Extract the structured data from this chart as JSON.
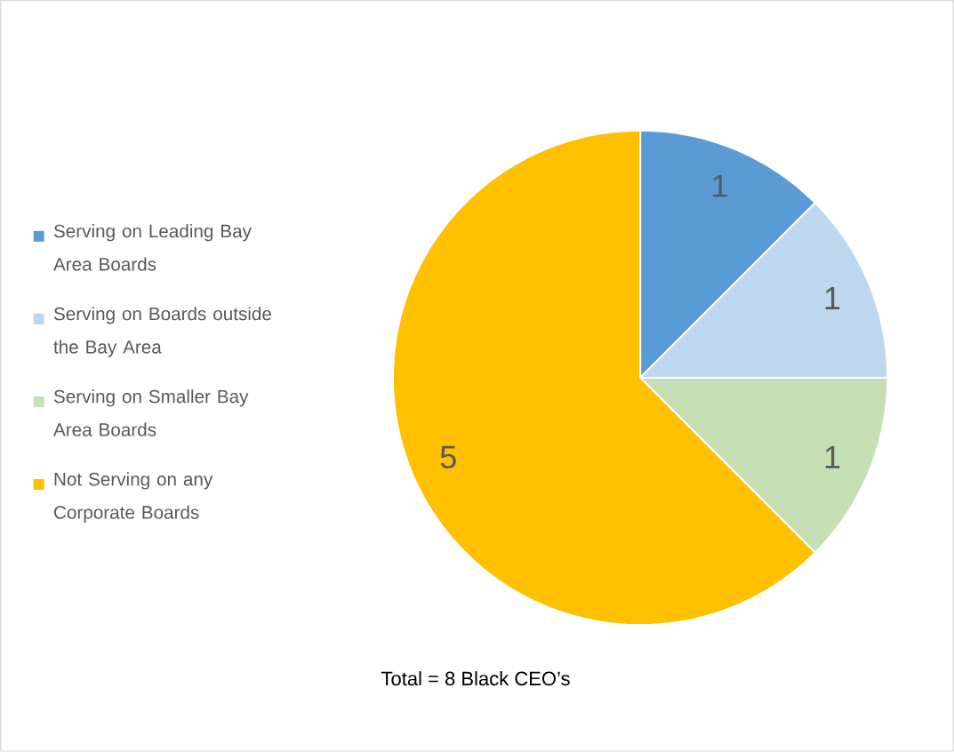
{
  "chart_data": {
    "type": "pie",
    "categories": [
      "Serving on Leading Bay Area Boards",
      "Serving on Boards outside the Bay Area",
      "Serving on Smaller Bay Area Boards",
      "Not Serving on any Corporate Boards"
    ],
    "values": [
      1,
      1,
      1,
      5
    ],
    "colors": [
      "#5b9bd5",
      "#bdd7ee",
      "#c5e0b4",
      "#ffc000"
    ],
    "data_labels": true,
    "legend": "left",
    "annotations": [
      "Total = 8 Black CEO’s"
    ]
  }
}
